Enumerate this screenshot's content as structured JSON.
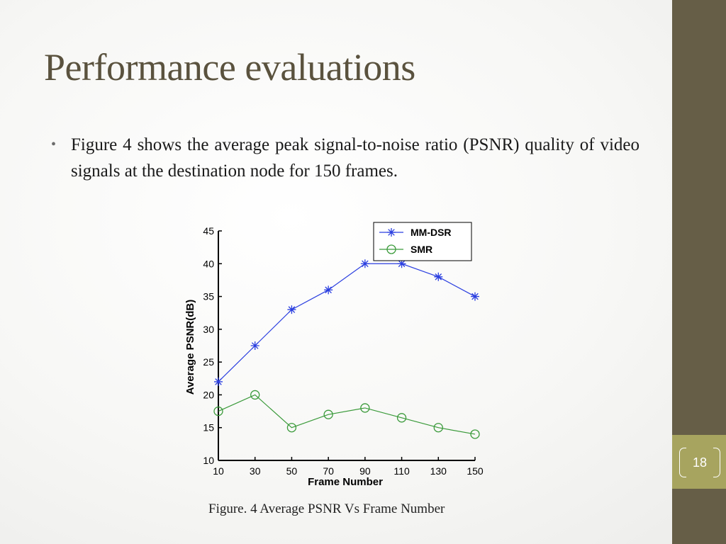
{
  "slide": {
    "title": "Performance evaluations",
    "bullets": [
      "Figure 4 shows the average peak signal-to-noise ratio (PSNR) quality of video signals at the destination node for 150 frames."
    ],
    "caption": "Figure. 4 Average PSNR Vs Frame Number",
    "page_number": "18"
  },
  "colors": {
    "title": "#5a523e",
    "sidebar": "#665e47",
    "sidebar_accent": "#a7a45f",
    "mm_dsr": "#2b3fe0",
    "smr": "#3a9a3a"
  },
  "chart_data": {
    "type": "line",
    "title": "",
    "xlabel": "Frame Number",
    "ylabel": "Average PSNR(dB)",
    "x": [
      10,
      30,
      50,
      70,
      90,
      110,
      130,
      150
    ],
    "xticks": [
      "10",
      "30",
      "50",
      "70",
      "90",
      "110",
      "130",
      "150"
    ],
    "yticks": [
      "10",
      "15",
      "20",
      "25",
      "30",
      "35",
      "40",
      "45"
    ],
    "xlim": [
      10,
      150
    ],
    "ylim": [
      10,
      45
    ],
    "grid": false,
    "legend_position": "top-right",
    "series": [
      {
        "name": "MM-DSR",
        "marker": "star",
        "color": "#2b3fe0",
        "values": [
          22,
          27.5,
          33,
          36,
          40,
          40,
          38,
          35
        ]
      },
      {
        "name": "SMR",
        "marker": "circle",
        "color": "#3a9a3a",
        "values": [
          17.5,
          20,
          15,
          17,
          18,
          16.5,
          15,
          14
        ]
      }
    ]
  }
}
